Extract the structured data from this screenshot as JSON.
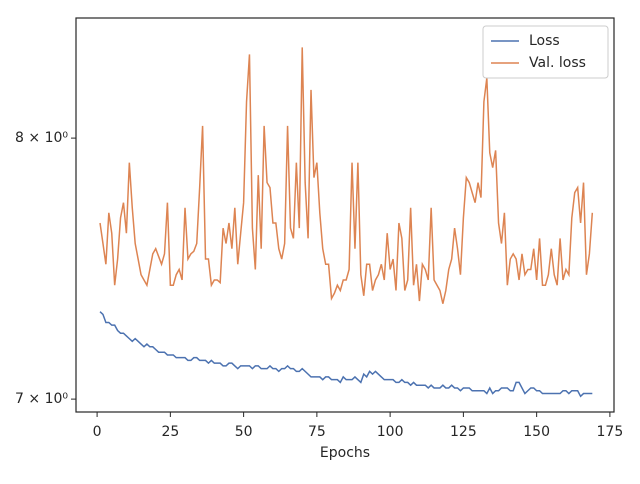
{
  "chart_data": {
    "type": "line",
    "xlabel": "Epochs",
    "yscale": "log",
    "legend": "upper right",
    "xlim": [
      -7.2,
      176.4
    ],
    "xticks": [
      0,
      25,
      50,
      75,
      100,
      125,
      150,
      175
    ],
    "ylim": [
      6.954,
      8.507
    ],
    "yticks": [
      {
        "value": 7,
        "label": "7 × 10⁰"
      },
      {
        "value": 8,
        "label": "8 × 10⁰"
      }
    ],
    "x": [
      1,
      2,
      3,
      4,
      5,
      6,
      7,
      8,
      9,
      10,
      11,
      12,
      13,
      14,
      15,
      16,
      17,
      18,
      19,
      20,
      21,
      22,
      23,
      24,
      25,
      26,
      27,
      28,
      29,
      30,
      31,
      32,
      33,
      34,
      35,
      36,
      37,
      38,
      39,
      40,
      41,
      42,
      43,
      44,
      45,
      46,
      47,
      48,
      49,
      50,
      51,
      52,
      53,
      54,
      55,
      56,
      57,
      58,
      59,
      60,
      61,
      62,
      63,
      64,
      65,
      66,
      67,
      68,
      69,
      70,
      71,
      72,
      73,
      74,
      75,
      76,
      77,
      78,
      79,
      80,
      81,
      82,
      83,
      84,
      85,
      86,
      87,
      88,
      89,
      90,
      91,
      92,
      93,
      94,
      95,
      96,
      97,
      98,
      99,
      100,
      101,
      102,
      103,
      104,
      105,
      106,
      107,
      108,
      109,
      110,
      111,
      112,
      113,
      114,
      115,
      116,
      117,
      118,
      119,
      120,
      121,
      122,
      123,
      124,
      125,
      126,
      127,
      128,
      129,
      130,
      131,
      132,
      133,
      134,
      135,
      136,
      137,
      138,
      139,
      140,
      141,
      142,
      143,
      144,
      145,
      146,
      147,
      148,
      149,
      150,
      151,
      152,
      153,
      154,
      155,
      156,
      157,
      158,
      159,
      160,
      161,
      162,
      163,
      164,
      165,
      166,
      167,
      168,
      169
    ],
    "series": [
      {
        "name": "Loss",
        "color": "#4c72b0",
        "values": [
          7.32,
          7.31,
          7.28,
          7.28,
          7.27,
          7.27,
          7.25,
          7.24,
          7.24,
          7.23,
          7.22,
          7.21,
          7.22,
          7.21,
          7.2,
          7.19,
          7.2,
          7.19,
          7.19,
          7.18,
          7.17,
          7.17,
          7.17,
          7.16,
          7.16,
          7.16,
          7.15,
          7.15,
          7.15,
          7.15,
          7.14,
          7.14,
          7.15,
          7.15,
          7.14,
          7.14,
          7.14,
          7.13,
          7.14,
          7.13,
          7.13,
          7.13,
          7.12,
          7.12,
          7.13,
          7.13,
          7.12,
          7.11,
          7.12,
          7.12,
          7.12,
          7.12,
          7.11,
          7.12,
          7.12,
          7.11,
          7.11,
          7.11,
          7.12,
          7.11,
          7.11,
          7.1,
          7.11,
          7.11,
          7.12,
          7.11,
          7.11,
          7.1,
          7.1,
          7.11,
          7.1,
          7.09,
          7.08,
          7.08,
          7.08,
          7.08,
          7.07,
          7.08,
          7.08,
          7.07,
          7.07,
          7.07,
          7.06,
          7.08,
          7.07,
          7.07,
          7.07,
          7.08,
          7.07,
          7.06,
          7.09,
          7.08,
          7.1,
          7.09,
          7.1,
          7.09,
          7.08,
          7.07,
          7.07,
          7.07,
          7.07,
          7.06,
          7.06,
          7.07,
          7.06,
          7.06,
          7.05,
          7.06,
          7.05,
          7.05,
          7.05,
          7.05,
          7.04,
          7.05,
          7.04,
          7.04,
          7.04,
          7.05,
          7.04,
          7.04,
          7.05,
          7.04,
          7.04,
          7.03,
          7.04,
          7.04,
          7.04,
          7.03,
          7.03,
          7.03,
          7.03,
          7.03,
          7.02,
          7.04,
          7.02,
          7.03,
          7.03,
          7.04,
          7.04,
          7.04,
          7.03,
          7.03,
          7.06,
          7.06,
          7.04,
          7.02,
          7.03,
          7.04,
          7.04,
          7.03,
          7.03,
          7.02,
          7.02,
          7.02,
          7.02,
          7.02,
          7.02,
          7.02,
          7.03,
          7.03,
          7.02,
          7.03,
          7.03,
          7.03,
          7.01,
          7.02,
          7.02,
          7.02,
          7.02
        ]
      },
      {
        "name": "Val. loss",
        "color": "#dd8452",
        "values": [
          7.66,
          7.58,
          7.5,
          7.7,
          7.62,
          7.42,
          7.52,
          7.68,
          7.74,
          7.62,
          7.9,
          7.72,
          7.58,
          7.52,
          7.46,
          7.44,
          7.42,
          7.48,
          7.54,
          7.56,
          7.53,
          7.5,
          7.54,
          7.74,
          7.42,
          7.42,
          7.46,
          7.48,
          7.44,
          7.72,
          7.52,
          7.54,
          7.55,
          7.58,
          7.8,
          8.05,
          7.52,
          7.52,
          7.42,
          7.44,
          7.44,
          7.43,
          7.64,
          7.58,
          7.66,
          7.56,
          7.72,
          7.5,
          7.62,
          7.74,
          8.15,
          8.35,
          7.64,
          7.48,
          7.85,
          7.56,
          8.05,
          7.82,
          7.8,
          7.66,
          7.66,
          7.56,
          7.52,
          7.58,
          8.05,
          7.64,
          7.6,
          7.9,
          7.64,
          8.38,
          7.82,
          7.6,
          8.2,
          7.84,
          7.9,
          7.7,
          7.56,
          7.5,
          7.5,
          7.37,
          7.39,
          7.42,
          7.4,
          7.44,
          7.44,
          7.48,
          7.9,
          7.56,
          7.9,
          7.46,
          7.38,
          7.5,
          7.5,
          7.4,
          7.44,
          7.46,
          7.5,
          7.44,
          7.62,
          7.48,
          7.52,
          7.4,
          7.66,
          7.6,
          7.4,
          7.44,
          7.72,
          7.42,
          7.5,
          7.36,
          7.5,
          7.48,
          7.44,
          7.72,
          7.44,
          7.42,
          7.4,
          7.35,
          7.4,
          7.48,
          7.52,
          7.64,
          7.56,
          7.46,
          7.68,
          7.84,
          7.82,
          7.78,
          7.74,
          7.82,
          7.76,
          8.15,
          8.25,
          7.94,
          7.88,
          7.95,
          7.66,
          7.58,
          7.7,
          7.42,
          7.52,
          7.54,
          7.52,
          7.44,
          7.54,
          7.46,
          7.48,
          7.48,
          7.56,
          7.44,
          7.6,
          7.42,
          7.42,
          7.46,
          7.56,
          7.46,
          7.42,
          7.6,
          7.44,
          7.48,
          7.46,
          7.68,
          7.78,
          7.8,
          7.66,
          7.82,
          7.46,
          7.54,
          7.7
        ]
      }
    ]
  }
}
